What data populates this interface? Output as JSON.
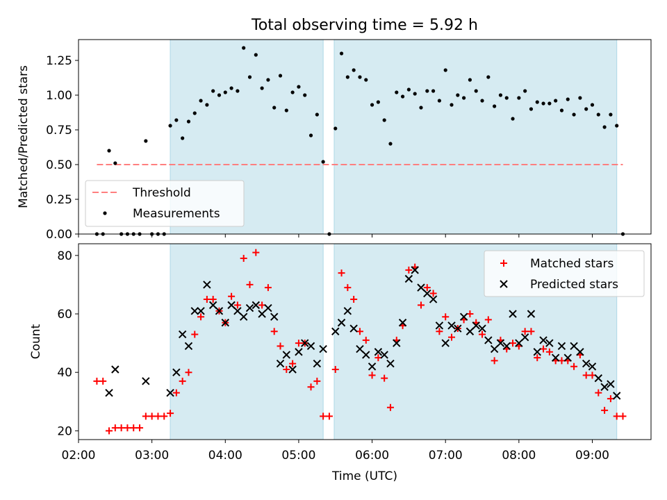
{
  "figure": {
    "title": "Total observing time = 5.92 h",
    "shaded_intervals": [
      [
        "03:15",
        "05:20"
      ],
      [
        "05:29",
        "09:20"
      ]
    ],
    "shade_color": "#add8e6",
    "xlabel": "Time (UTC)",
    "x_tick_labels": [
      "02:00",
      "03:00",
      "04:00",
      "05:00",
      "06:00",
      "07:00",
      "08:00",
      "09:00"
    ]
  },
  "chart_data": [
    {
      "type": "scatter",
      "ylabel": "Matched/Predicted stars",
      "ylim": [
        0,
        1.4
      ],
      "y_tick_labels": [
        "0.00",
        "0.25",
        "0.50",
        "0.75",
        "1.00",
        "1.25"
      ],
      "xlim": [
        "02:00",
        "09:48"
      ],
      "legend_position": "lower-left",
      "threshold": {
        "name": "Threshold",
        "value": 0.5,
        "x_range": [
          "02:15",
          "09:25"
        ],
        "color": "#ff7f7f"
      },
      "series": [
        {
          "name": "Measurements",
          "color": "#000000",
          "points": [
            [
              "02:15",
              0.0
            ],
            [
              "02:20",
              0.0
            ],
            [
              "02:25",
              0.6
            ],
            [
              "02:30",
              0.51
            ],
            [
              "02:35",
              0.0
            ],
            [
              "02:40",
              0.0
            ],
            [
              "02:45",
              0.0
            ],
            [
              "02:50",
              0.0
            ],
            [
              "02:55",
              0.67
            ],
            [
              "03:00",
              0.0
            ],
            [
              "03:05",
              0.0
            ],
            [
              "03:10",
              0.0
            ],
            [
              "03:15",
              0.78
            ],
            [
              "03:20",
              0.82
            ],
            [
              "03:25",
              0.69
            ],
            [
              "03:30",
              0.81
            ],
            [
              "03:35",
              0.87
            ],
            [
              "03:40",
              0.96
            ],
            [
              "03:45",
              0.93
            ],
            [
              "03:50",
              1.03
            ],
            [
              "03:55",
              1.0
            ],
            [
              "04:00",
              1.02
            ],
            [
              "04:05",
              1.05
            ],
            [
              "04:10",
              1.03
            ],
            [
              "04:15",
              1.34
            ],
            [
              "04:20",
              1.13
            ],
            [
              "04:25",
              1.29
            ],
            [
              "04:30",
              1.05
            ],
            [
              "04:35",
              1.11
            ],
            [
              "04:40",
              0.91
            ],
            [
              "04:45",
              1.14
            ],
            [
              "04:50",
              0.89
            ],
            [
              "04:55",
              1.02
            ],
            [
              "05:00",
              1.06
            ],
            [
              "05:05",
              1.0
            ],
            [
              "05:10",
              0.71
            ],
            [
              "05:15",
              0.86
            ],
            [
              "05:20",
              0.52
            ],
            [
              "05:25",
              0.0
            ],
            [
              "05:30",
              0.76
            ],
            [
              "05:35",
              1.3
            ],
            [
              "05:40",
              1.13
            ],
            [
              "05:45",
              1.18
            ],
            [
              "05:50",
              1.13
            ],
            [
              "05:55",
              1.11
            ],
            [
              "06:00",
              0.93
            ],
            [
              "06:05",
              0.95
            ],
            [
              "06:10",
              0.82
            ],
            [
              "06:15",
              0.65
            ],
            [
              "06:20",
              1.02
            ],
            [
              "06:25",
              0.99
            ],
            [
              "06:30",
              1.04
            ],
            [
              "06:35",
              1.01
            ],
            [
              "06:40",
              0.91
            ],
            [
              "06:45",
              1.03
            ],
            [
              "06:50",
              1.03
            ],
            [
              "06:55",
              0.96
            ],
            [
              "07:00",
              1.18
            ],
            [
              "07:05",
              0.93
            ],
            [
              "07:10",
              1.0
            ],
            [
              "07:15",
              0.98
            ],
            [
              "07:20",
              1.11
            ],
            [
              "07:25",
              1.03
            ],
            [
              "07:30",
              0.96
            ],
            [
              "07:35",
              1.13
            ],
            [
              "07:40",
              0.92
            ],
            [
              "07:45",
              1.0
            ],
            [
              "07:50",
              0.98
            ],
            [
              "07:55",
              0.83
            ],
            [
              "08:00",
              0.98
            ],
            [
              "08:05",
              1.03
            ],
            [
              "08:10",
              0.9
            ],
            [
              "08:15",
              0.95
            ],
            [
              "08:20",
              0.94
            ],
            [
              "08:25",
              0.94
            ],
            [
              "08:30",
              0.96
            ],
            [
              "08:35",
              0.89
            ],
            [
              "08:40",
              0.97
            ],
            [
              "08:45",
              0.86
            ],
            [
              "08:50",
              0.98
            ],
            [
              "08:55",
              0.9
            ],
            [
              "09:00",
              0.93
            ],
            [
              "09:05",
              0.86
            ],
            [
              "09:10",
              0.77
            ],
            [
              "09:15",
              0.86
            ],
            [
              "09:20",
              0.78
            ],
            [
              "09:25",
              0.0
            ]
          ]
        }
      ]
    },
    {
      "type": "scatter",
      "ylabel": "Count",
      "ylim": [
        17,
        84
      ],
      "y_tick_labels": [
        "20",
        "40",
        "60",
        "80"
      ],
      "xlim": [
        "02:00",
        "09:48"
      ],
      "legend_position": "upper-right",
      "series": [
        {
          "name": "Matched stars",
          "marker": "+",
          "color": "#ff0000",
          "points": [
            [
              "02:15",
              37
            ],
            [
              "02:20",
              37
            ],
            [
              "02:25",
              20
            ],
            [
              "02:30",
              21
            ],
            [
              "02:35",
              21
            ],
            [
              "02:40",
              21
            ],
            [
              "02:45",
              21
            ],
            [
              "02:50",
              21
            ],
            [
              "02:55",
              25
            ],
            [
              "03:00",
              25
            ],
            [
              "03:05",
              25
            ],
            [
              "03:10",
              25
            ],
            [
              "03:15",
              26
            ],
            [
              "03:20",
              33
            ],
            [
              "03:25",
              37
            ],
            [
              "03:30",
              40
            ],
            [
              "03:35",
              53
            ],
            [
              "03:40",
              59
            ],
            [
              "03:45",
              65
            ],
            [
              "03:50",
              65
            ],
            [
              "03:55",
              61
            ],
            [
              "04:00",
              57
            ],
            [
              "04:05",
              66
            ],
            [
              "04:10",
              63
            ],
            [
              "04:15",
              79
            ],
            [
              "04:20",
              70
            ],
            [
              "04:25",
              81
            ],
            [
              "04:30",
              63
            ],
            [
              "04:35",
              69
            ],
            [
              "04:40",
              54
            ],
            [
              "04:45",
              49
            ],
            [
              "04:50",
              41
            ],
            [
              "04:55",
              43
            ],
            [
              "05:00",
              50
            ],
            [
              "05:05",
              50
            ],
            [
              "05:10",
              35
            ],
            [
              "05:15",
              37
            ],
            [
              "05:20",
              25
            ],
            [
              "05:25",
              25
            ],
            [
              "05:30",
              41
            ],
            [
              "05:35",
              74
            ],
            [
              "05:40",
              69
            ],
            [
              "05:45",
              65
            ],
            [
              "05:50",
              54
            ],
            [
              "05:55",
              51
            ],
            [
              "06:00",
              39
            ],
            [
              "06:05",
              45
            ],
            [
              "06:10",
              38
            ],
            [
              "06:15",
              28
            ],
            [
              "06:20",
              51
            ],
            [
              "06:25",
              56
            ],
            [
              "06:30",
              75
            ],
            [
              "06:35",
              76
            ],
            [
              "06:40",
              63
            ],
            [
              "06:45",
              69
            ],
            [
              "06:50",
              67
            ],
            [
              "06:55",
              54
            ],
            [
              "07:00",
              59
            ],
            [
              "07:05",
              52
            ],
            [
              "07:10",
              55
            ],
            [
              "07:15",
              58
            ],
            [
              "07:20",
              60
            ],
            [
              "07:25",
              57
            ],
            [
              "07:30",
              53
            ],
            [
              "07:35",
              58
            ],
            [
              "07:40",
              44
            ],
            [
              "07:45",
              51
            ],
            [
              "07:50",
              48
            ],
            [
              "07:55",
              50
            ],
            [
              "08:00",
              49
            ],
            [
              "08:05",
              54
            ],
            [
              "08:10",
              54
            ],
            [
              "08:15",
              45
            ],
            [
              "08:20",
              48
            ],
            [
              "08:25",
              47
            ],
            [
              "08:30",
              44
            ],
            [
              "08:35",
              44
            ],
            [
              "08:40",
              44
            ],
            [
              "08:45",
              42
            ],
            [
              "08:50",
              46
            ],
            [
              "08:55",
              39
            ],
            [
              "09:00",
              39
            ],
            [
              "09:05",
              33
            ],
            [
              "09:10",
              27
            ],
            [
              "09:15",
              31
            ],
            [
              "09:20",
              25
            ],
            [
              "09:25",
              25
            ]
          ]
        },
        {
          "name": "Predicted stars",
          "marker": "x",
          "color": "#000000",
          "points": [
            [
              "02:25",
              33
            ],
            [
              "02:30",
              41
            ],
            [
              "02:55",
              37
            ],
            [
              "03:15",
              33
            ],
            [
              "03:20",
              40
            ],
            [
              "03:25",
              53
            ],
            [
              "03:30",
              49
            ],
            [
              "03:35",
              61
            ],
            [
              "03:40",
              61
            ],
            [
              "03:45",
              70
            ],
            [
              "03:50",
              63
            ],
            [
              "03:55",
              61
            ],
            [
              "04:00",
              57
            ],
            [
              "04:05",
              63
            ],
            [
              "04:10",
              61
            ],
            [
              "04:15",
              59
            ],
            [
              "04:20",
              62
            ],
            [
              "04:25",
              63
            ],
            [
              "04:30",
              60
            ],
            [
              "04:35",
              62
            ],
            [
              "04:40",
              59
            ],
            [
              "04:45",
              43
            ],
            [
              "04:50",
              46
            ],
            [
              "04:55",
              41
            ],
            [
              "05:00",
              47
            ],
            [
              "05:05",
              50
            ],
            [
              "05:10",
              49
            ],
            [
              "05:15",
              43
            ],
            [
              "05:20",
              48
            ],
            [
              "05:30",
              54
            ],
            [
              "05:35",
              57
            ],
            [
              "05:40",
              61
            ],
            [
              "05:45",
              55
            ],
            [
              "05:50",
              48
            ],
            [
              "05:55",
              46
            ],
            [
              "06:00",
              42
            ],
            [
              "06:05",
              47
            ],
            [
              "06:10",
              46
            ],
            [
              "06:15",
              43
            ],
            [
              "06:20",
              50
            ],
            [
              "06:25",
              57
            ],
            [
              "06:30",
              72
            ],
            [
              "06:35",
              75
            ],
            [
              "06:40",
              69
            ],
            [
              "06:45",
              67
            ],
            [
              "06:50",
              65
            ],
            [
              "06:55",
              56
            ],
            [
              "07:00",
              50
            ],
            [
              "07:05",
              56
            ],
            [
              "07:10",
              55
            ],
            [
              "07:15",
              59
            ],
            [
              "07:20",
              54
            ],
            [
              "07:25",
              56
            ],
            [
              "07:30",
              55
            ],
            [
              "07:35",
              51
            ],
            [
              "07:40",
              48
            ],
            [
              "07:45",
              50
            ],
            [
              "07:50",
              49
            ],
            [
              "07:55",
              60
            ],
            [
              "08:00",
              50
            ],
            [
              "08:05",
              52
            ],
            [
              "08:10",
              60
            ],
            [
              "08:15",
              47
            ],
            [
              "08:20",
              51
            ],
            [
              "08:25",
              50
            ],
            [
              "08:30",
              45
            ],
            [
              "08:35",
              49
            ],
            [
              "08:40",
              45
            ],
            [
              "08:45",
              49
            ],
            [
              "08:50",
              47
            ],
            [
              "08:55",
              43
            ],
            [
              "09:00",
              42
            ],
            [
              "09:05",
              38
            ],
            [
              "09:10",
              35
            ],
            [
              "09:15",
              36
            ],
            [
              "09:20",
              32
            ]
          ]
        }
      ]
    }
  ]
}
